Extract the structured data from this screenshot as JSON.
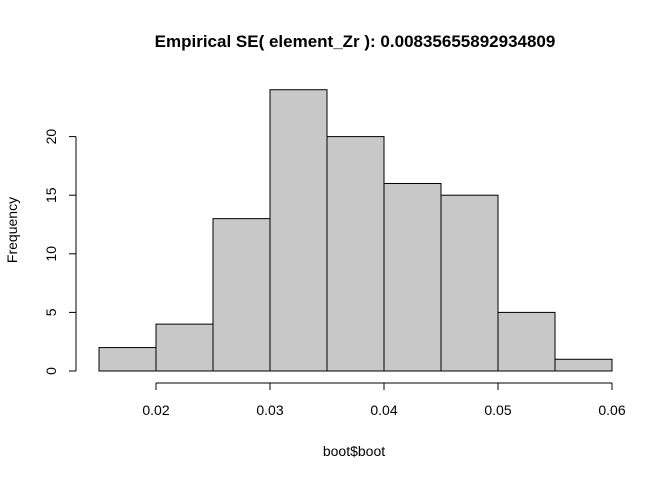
{
  "chart_data": {
    "type": "bar",
    "title": "Empirical SE( element_Zr ):  0.00835655892934809",
    "xlabel": "boot$boot",
    "ylabel": "Frequency",
    "bins": [
      {
        "x0": 0.015,
        "x1": 0.02,
        "count": 2
      },
      {
        "x0": 0.02,
        "x1": 0.025,
        "count": 4
      },
      {
        "x0": 0.025,
        "x1": 0.03,
        "count": 13
      },
      {
        "x0": 0.03,
        "x1": 0.035,
        "count": 24
      },
      {
        "x0": 0.035,
        "x1": 0.04,
        "count": 20
      },
      {
        "x0": 0.04,
        "x1": 0.045,
        "count": 16
      },
      {
        "x0": 0.045,
        "x1": 0.05,
        "count": 15
      },
      {
        "x0": 0.05,
        "x1": 0.055,
        "count": 5
      },
      {
        "x0": 0.055,
        "x1": 0.06,
        "count": 1
      }
    ],
    "xticks": [
      0.02,
      0.03,
      0.04,
      0.05,
      0.06
    ],
    "xtick_labels": [
      "0.02",
      "0.03",
      "0.04",
      "0.05",
      "0.06"
    ],
    "yticks": [
      0,
      5,
      10,
      15,
      20
    ],
    "ytick_labels": [
      "0",
      "5",
      "10",
      "15",
      "20"
    ],
    "xlim": [
      0.015,
      0.06
    ],
    "ylim": [
      0,
      24
    ],
    "grid": false,
    "bar_color": "#c8c8c8"
  }
}
